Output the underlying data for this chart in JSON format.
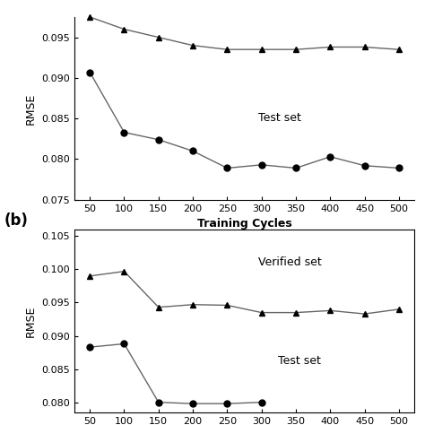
{
  "x": [
    50,
    100,
    150,
    200,
    250,
    300,
    350,
    400,
    450,
    500
  ],
  "panel_a": {
    "verified_set": [
      0.0975,
      0.096,
      0.095,
      0.094,
      0.0935,
      0.0935,
      0.0935,
      0.0938,
      0.0938,
      0.0935
    ],
    "test_set": [
      0.0907,
      0.0833,
      0.0824,
      0.081,
      0.0789,
      0.0793,
      0.0789,
      0.0803,
      0.0792,
      0.0789
    ]
  },
  "panel_b": {
    "verified_set": [
      0.099,
      0.0997,
      0.0943,
      0.0947,
      0.0946,
      0.0935,
      0.0935,
      0.0938,
      0.0933,
      0.094
    ],
    "test_set": [
      0.0883,
      0.0888,
      0.08,
      0.0798,
      0.0798,
      0.08,
      null,
      null,
      null,
      null
    ]
  },
  "xlabel": "Training Cycles",
  "ylabel": "RMSE",
  "panel_a_ylim": [
    0.075,
    0.0975
  ],
  "panel_b_ylim": [
    0.0785,
    0.106
  ],
  "panel_a_yticks": [
    0.075,
    0.08,
    0.085,
    0.09,
    0.095
  ],
  "panel_b_yticks": [
    0.08,
    0.085,
    0.09,
    0.095,
    0.1,
    0.105
  ],
  "xticks": [
    50,
    100,
    150,
    200,
    250,
    300,
    350,
    400,
    450,
    500
  ],
  "label_b": "(b)",
  "text_test_a": "Test set",
  "text_verified_b": "Verified set",
  "text_test_b": "Test set",
  "line_color": "#666666",
  "marker_circle": "o",
  "marker_triangle": "^",
  "markersize": 5,
  "linewidth": 1.0,
  "bg_color": "#ffffff"
}
